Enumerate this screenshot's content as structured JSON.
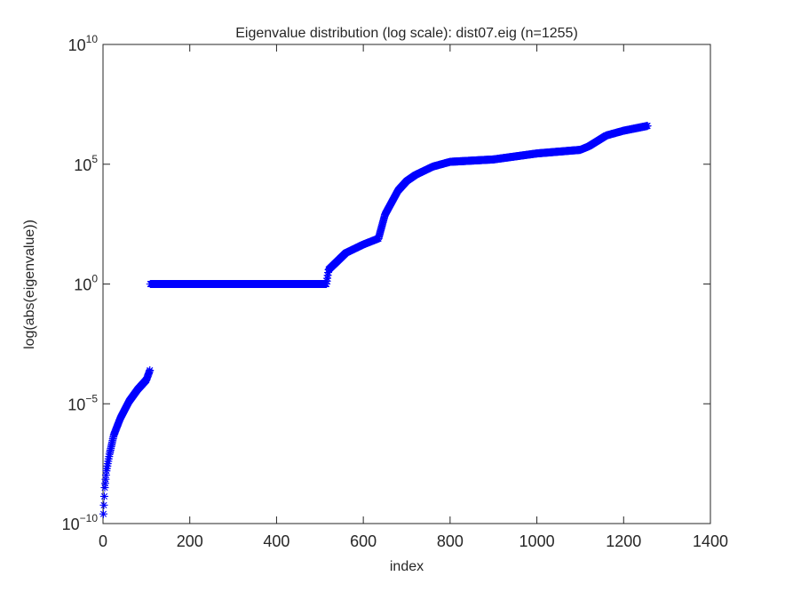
{
  "chart_data": {
    "type": "scatter",
    "title": "Eigenvalue distribution (log scale): dist07.eig (n=1255)",
    "xlabel": "index",
    "ylabel": "log(abs(eigenvalue))",
    "xlim": [
      0,
      1400
    ],
    "ylim": [
      1e-10,
      10000000000.0
    ],
    "yscale": "log",
    "grid": false,
    "legend": "none",
    "x_ticks": [
      0,
      200,
      400,
      600,
      800,
      1000,
      1200,
      1400
    ],
    "x_tick_labels": [
      "0",
      "200",
      "400",
      "600",
      "800",
      "1000",
      "1200",
      "1400"
    ],
    "y_ticks": [
      {
        "value": 1e-10,
        "base": "10",
        "exp": "−10"
      },
      {
        "value": 1e-05,
        "base": "10",
        "exp": "−5"
      },
      {
        "value": 1,
        "base": "10",
        "exp": "0"
      },
      {
        "value": 100000.0,
        "base": "10",
        "exp": "5"
      },
      {
        "value": 10000000000.0,
        "base": "10",
        "exp": "10"
      }
    ],
    "marker": "*",
    "marker_color": "#0000ff",
    "n": 1255,
    "series": [
      {
        "x_start": 1,
        "x_end": 1255,
        "log10_breakpoints": [
          [
            1,
            -9.6
          ],
          [
            4,
            -8.5
          ],
          [
            8,
            -7.8
          ],
          [
            15,
            -7.1
          ],
          [
            25,
            -6.3
          ],
          [
            40,
            -5.6
          ],
          [
            60,
            -4.9
          ],
          [
            80,
            -4.4
          ],
          [
            100,
            -4.0
          ],
          [
            108,
            -3.6
          ],
          [
            109,
            0.0
          ],
          [
            515,
            0.0
          ],
          [
            520,
            0.6
          ],
          [
            560,
            1.3
          ],
          [
            600,
            1.65
          ],
          [
            635,
            1.9
          ],
          [
            650,
            2.9
          ],
          [
            680,
            3.9
          ],
          [
            700,
            4.3
          ],
          [
            720,
            4.55
          ],
          [
            760,
            4.9
          ],
          [
            800,
            5.1
          ],
          [
            900,
            5.2
          ],
          [
            1000,
            5.45
          ],
          [
            1100,
            5.6
          ],
          [
            1120,
            5.75
          ],
          [
            1160,
            6.2
          ],
          [
            1200,
            6.4
          ],
          [
            1255,
            6.6
          ]
        ]
      }
    ]
  }
}
